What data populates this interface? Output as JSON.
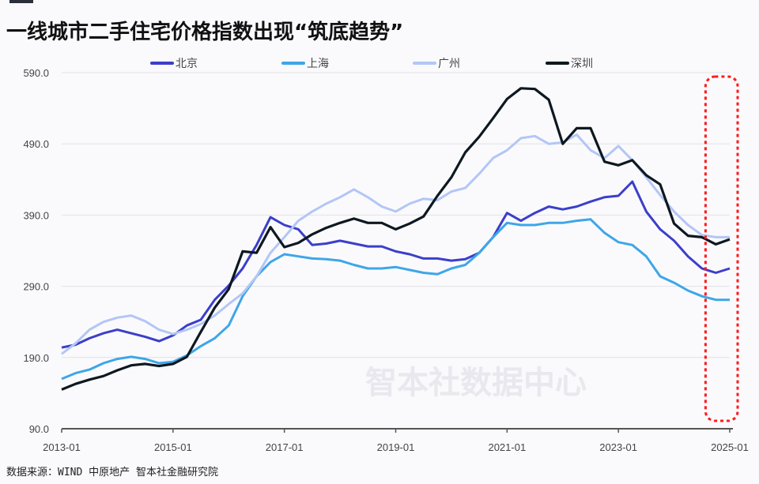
{
  "title": "一线城市二手住宅价格指数出现“筑底趋势”",
  "source": "数据来源：WIND 中原地产 智本社金融研究院",
  "watermark": "智本社数据中心",
  "chart_data": {
    "type": "line",
    "title": "一线城市二手住宅价格指数出现“筑底趋势”",
    "xlabel": "",
    "ylabel": "",
    "ylim": [
      90,
      590
    ],
    "yticks": [
      "590.0",
      "490.0",
      "390.0",
      "290.0",
      "190.0",
      "90.0"
    ],
    "xticks": [
      "2013-01",
      "2015-01",
      "2017-01",
      "2019-01",
      "2021-01",
      "2023-01",
      "2025-01"
    ],
    "grid": true,
    "legend_position": "top",
    "highlight": {
      "from": "2024-10",
      "to": "2025-01",
      "color": "#ff1a1a",
      "style": "dashed rounded box"
    },
    "x": [
      "2013-01",
      "2013-04",
      "2013-07",
      "2013-10",
      "2014-01",
      "2014-04",
      "2014-07",
      "2014-10",
      "2015-01",
      "2015-04",
      "2015-07",
      "2015-10",
      "2016-01",
      "2016-04",
      "2016-07",
      "2016-10",
      "2017-01",
      "2017-04",
      "2017-07",
      "2017-10",
      "2018-01",
      "2018-04",
      "2018-07",
      "2018-10",
      "2019-01",
      "2019-04",
      "2019-07",
      "2019-10",
      "2020-01",
      "2020-04",
      "2020-07",
      "2020-10",
      "2021-01",
      "2021-04",
      "2021-07",
      "2021-10",
      "2022-01",
      "2022-04",
      "2022-07",
      "2022-10",
      "2023-01",
      "2023-04",
      "2023-07",
      "2023-10",
      "2024-01",
      "2024-04",
      "2024-07",
      "2024-10",
      "2025-01"
    ],
    "series": [
      {
        "name": "北京",
        "color": "#3b3fc9",
        "values": [
          204,
          208,
          217,
          224,
          229,
          224,
          219,
          213,
          221,
          235,
          243,
          271,
          291,
          315,
          348,
          387,
          376,
          370,
          348,
          350,
          354,
          350,
          346,
          346,
          339,
          335,
          329,
          329,
          326,
          328,
          337,
          359,
          393,
          382,
          393,
          402,
          398,
          402,
          409,
          415,
          417,
          437,
          395,
          370,
          354,
          332,
          315,
          309,
          315
        ]
      },
      {
        "name": "上海",
        "color": "#3ea6e8",
        "values": [
          160,
          168,
          173,
          182,
          188,
          191,
          188,
          182,
          184,
          193,
          206,
          217,
          235,
          276,
          304,
          324,
          335,
          332,
          329,
          328,
          326,
          320,
          315,
          315,
          317,
          313,
          309,
          307,
          315,
          320,
          337,
          359,
          379,
          376,
          376,
          379,
          379,
          382,
          384,
          365,
          352,
          348,
          332,
          304,
          295,
          284,
          276,
          271,
          271
        ]
      },
      {
        "name": "广州",
        "color": "#b3c6f5",
        "values": [
          195,
          210,
          229,
          240,
          246,
          249,
          241,
          229,
          223,
          229,
          237,
          249,
          265,
          280,
          304,
          337,
          359,
          382,
          395,
          406,
          415,
          426,
          415,
          402,
          395,
          406,
          413,
          411,
          423,
          428,
          448,
          470,
          481,
          498,
          501,
          490,
          492,
          503,
          481,
          470,
          487,
          467,
          443,
          418,
          395,
          376,
          362,
          359,
          359
        ]
      },
      {
        "name": "深圳",
        "color": "#0d1820",
        "values": [
          145,
          153,
          159,
          164,
          172,
          179,
          181,
          178,
          181,
          191,
          226,
          260,
          286,
          339,
          337,
          373,
          345,
          351,
          363,
          372,
          379,
          385,
          379,
          379,
          370,
          378,
          388,
          417,
          443,
          478,
          500,
          526,
          553,
          568,
          567,
          552,
          490,
          512,
          512,
          465,
          460,
          467,
          446,
          433,
          378,
          361,
          359,
          349,
          356
        ]
      }
    ]
  }
}
